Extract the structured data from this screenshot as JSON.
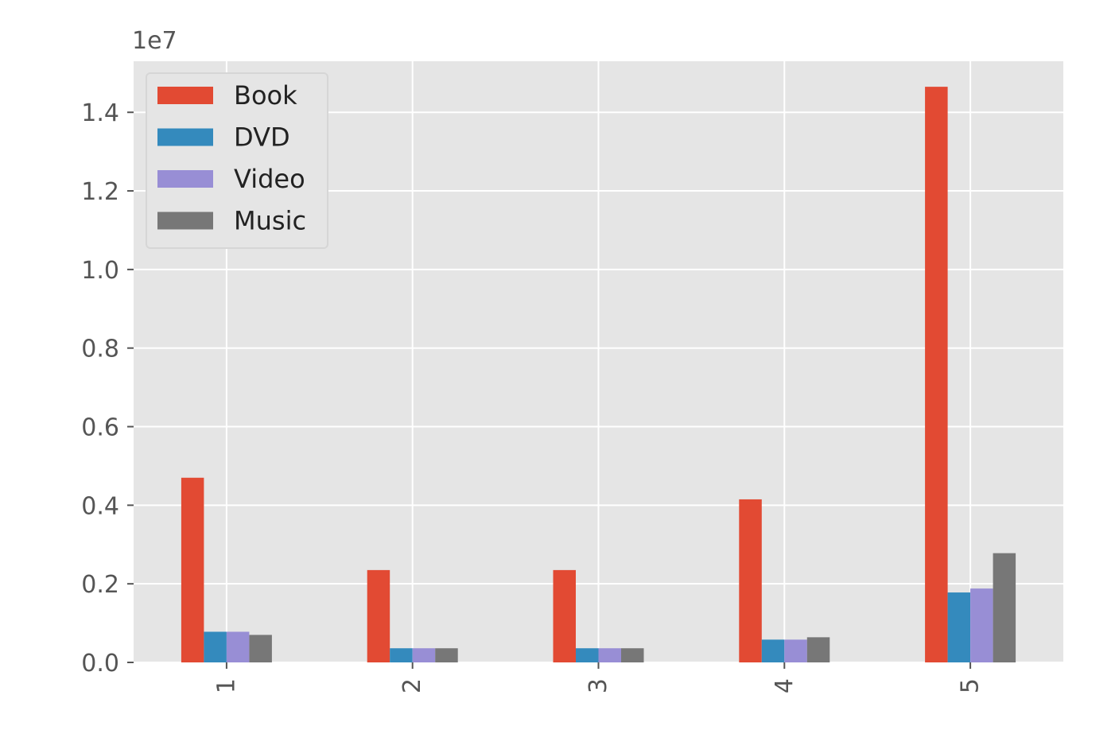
{
  "chart_data": {
    "type": "bar",
    "categories": [
      "1",
      "2",
      "3",
      "4",
      "5"
    ],
    "series": [
      {
        "name": "Book",
        "color": "#E24A33",
        "values": [
          4700000,
          2350000,
          2350000,
          4150000,
          14650000
        ]
      },
      {
        "name": "DVD",
        "color": "#348ABD",
        "values": [
          780000,
          360000,
          360000,
          580000,
          1780000
        ]
      },
      {
        "name": "Video",
        "color": "#988ED5",
        "values": [
          780000,
          360000,
          360000,
          580000,
          1880000
        ]
      },
      {
        "name": "Music",
        "color": "#777777",
        "values": [
          700000,
          360000,
          360000,
          640000,
          2780000
        ]
      }
    ],
    "title": "",
    "xlabel": "",
    "ylabel": "",
    "ylim": [
      0,
      15300000
    ],
    "y_ticks": [
      0,
      2000000,
      4000000,
      6000000,
      8000000,
      10000000,
      12000000,
      14000000
    ],
    "y_tick_labels": [
      "0.0",
      "0.2",
      "0.4",
      "0.6",
      "0.8",
      "1.0",
      "1.2",
      "1.4"
    ],
    "y_offset_label": "1e7",
    "x_tick_rotation": "vertical",
    "grid": true,
    "legend_placement": "upper-left",
    "style": "ggplot",
    "background_color": "#E5E5E5",
    "grid_color": "#FFFFFF"
  }
}
